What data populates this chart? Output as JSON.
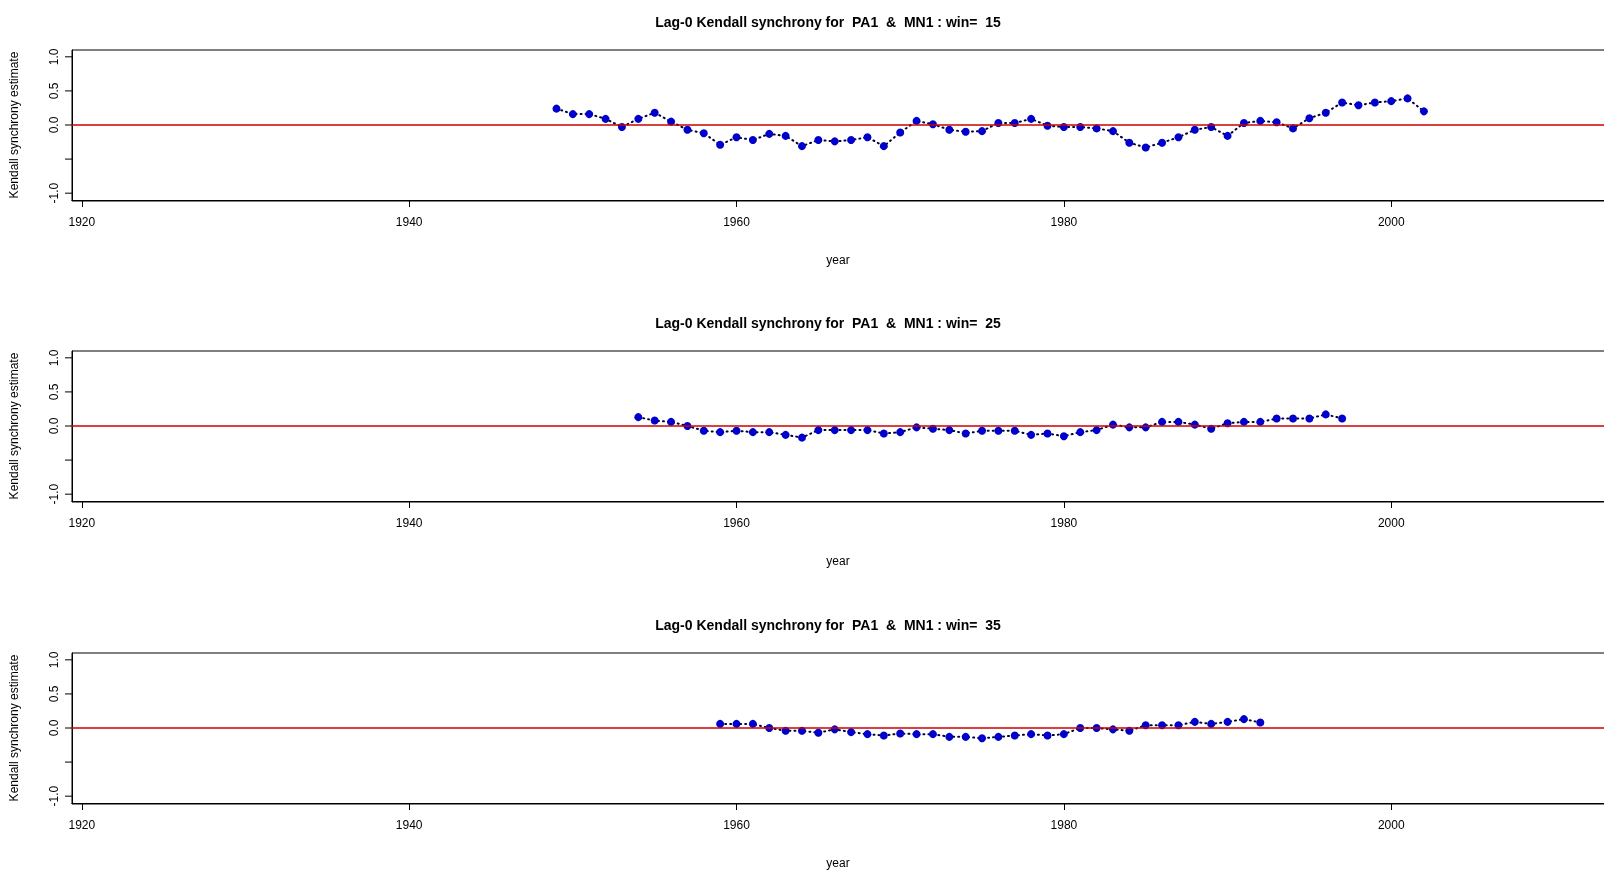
{
  "chart_data": [
    {
      "type": "line",
      "title": "Lag-0 Kendall synchrony for  PA1  &  MN1 : win=  15",
      "xlabel": "year",
      "ylabel": "Kendall synchrony estimate",
      "marker": "circle",
      "line_style": "dotted",
      "x": [
        1949,
        1950,
        1951,
        1952,
        1953,
        1954,
        1955,
        1956,
        1957,
        1958,
        1959,
        1960,
        1961,
        1962,
        1963,
        1964,
        1965,
        1966,
        1967,
        1968,
        1969,
        1970,
        1971,
        1972,
        1973,
        1974,
        1975,
        1976,
        1977,
        1978,
        1979,
        1980,
        1981,
        1982,
        1983,
        1984,
        1985,
        1986,
        1987,
        1988,
        1989,
        1990,
        1991,
        1992,
        1993,
        1994,
        1995,
        1996,
        1997,
        1998,
        1999,
        2000,
        2001,
        2002
      ],
      "series": [
        {
          "color": "#0000cc",
          "values": [
            0.24,
            0.16,
            0.16,
            0.09,
            -0.03,
            0.09,
            0.18,
            0.05,
            -0.07,
            -0.12,
            -0.29,
            -0.18,
            -0.22,
            -0.13,
            -0.16,
            -0.31,
            -0.22,
            -0.24,
            -0.22,
            -0.18,
            -0.31,
            -0.11,
            0.06,
            0.01,
            -0.07,
            -0.1,
            -0.09,
            0.03,
            0.03,
            0.09,
            -0.01,
            -0.03,
            -0.03,
            -0.05,
            -0.09,
            -0.26,
            -0.33,
            -0.26,
            -0.18,
            -0.07,
            -0.03,
            -0.16,
            0.03,
            0.06,
            0.04,
            -0.05,
            0.1,
            0.18,
            0.33,
            0.29,
            0.33,
            0.35,
            0.39,
            0.2
          ]
        }
      ],
      "xlim": [
        1919.4,
        2013
      ],
      "xticks": [
        1920,
        1940,
        1960,
        1980,
        2000
      ],
      "ylim": [
        -1.1,
        1.1
      ],
      "yticks": [
        {
          "value": -1,
          "label": "-1.0"
        },
        {
          "value": -0.5,
          "label": null
        },
        {
          "value": 0,
          "label": "0.0"
        },
        {
          "value": 0.5,
          "label": "0.5"
        },
        {
          "value": 1,
          "label": "1.0"
        }
      ],
      "ref_lines": [
        {
          "axis": "y",
          "value": 0,
          "color": "#cc0000"
        }
      ]
    },
    {
      "type": "line",
      "title": "Lag-0 Kendall synchrony for  PA1  &  MN1 : win=  25",
      "xlabel": "year",
      "ylabel": "Kendall synchrony estimate",
      "marker": "circle",
      "line_style": "dotted",
      "x": [
        1954,
        1955,
        1956,
        1957,
        1958,
        1959,
        1960,
        1961,
        1962,
        1963,
        1964,
        1965,
        1966,
        1967,
        1968,
        1969,
        1970,
        1971,
        1972,
        1973,
        1974,
        1975,
        1976,
        1977,
        1978,
        1979,
        1980,
        1981,
        1982,
        1983,
        1984,
        1985,
        1986,
        1987,
        1988,
        1989,
        1990,
        1991,
        1992,
        1993,
        1994,
        1995,
        1996,
        1997
      ],
      "series": [
        {
          "color": "#0000cc",
          "values": [
            0.13,
            0.08,
            0.06,
            0.0,
            -0.07,
            -0.09,
            -0.07,
            -0.09,
            -0.09,
            -0.13,
            -0.17,
            -0.06,
            -0.06,
            -0.06,
            -0.06,
            -0.11,
            -0.09,
            -0.02,
            -0.04,
            -0.06,
            -0.11,
            -0.07,
            -0.07,
            -0.07,
            -0.13,
            -0.11,
            -0.15,
            -0.09,
            -0.06,
            0.02,
            -0.02,
            -0.02,
            0.06,
            0.06,
            0.02,
            -0.04,
            0.04,
            0.06,
            0.06,
            0.11,
            0.11,
            0.11,
            0.17,
            0.11
          ]
        }
      ],
      "xlim": [
        1919.4,
        2013
      ],
      "xticks": [
        1920,
        1940,
        1960,
        1980,
        2000
      ],
      "ylim": [
        -1.1,
        1.1
      ],
      "yticks": [
        {
          "value": -1,
          "label": "-1.0"
        },
        {
          "value": -0.5,
          "label": null
        },
        {
          "value": 0,
          "label": "0.0"
        },
        {
          "value": 0.5,
          "label": "0.5"
        },
        {
          "value": 1,
          "label": "1.0"
        }
      ],
      "ref_lines": [
        {
          "axis": "y",
          "value": 0,
          "color": "#cc0000"
        }
      ]
    },
    {
      "type": "line",
      "title": "Lag-0 Kendall synchrony for  PA1  &  MN1 : win=  35",
      "xlabel": "year",
      "ylabel": "Kendall synchrony estimate",
      "marker": "circle",
      "line_style": "dotted",
      "x": [
        1959,
        1960,
        1961,
        1962,
        1963,
        1964,
        1965,
        1966,
        1967,
        1968,
        1969,
        1970,
        1971,
        1972,
        1973,
        1974,
        1975,
        1976,
        1977,
        1978,
        1979,
        1980,
        1981,
        1982,
        1983,
        1984,
        1985,
        1986,
        1987,
        1988,
        1989,
        1990,
        1991,
        1992
      ],
      "series": [
        {
          "color": "#0000cc",
          "values": [
            0.06,
            0.06,
            0.06,
            0.0,
            -0.04,
            -0.04,
            -0.07,
            -0.02,
            -0.06,
            -0.09,
            -0.11,
            -0.08,
            -0.09,
            -0.09,
            -0.13,
            -0.13,
            -0.15,
            -0.13,
            -0.11,
            -0.09,
            -0.11,
            -0.09,
            0.0,
            0.0,
            -0.02,
            -0.04,
            0.04,
            0.04,
            0.04,
            0.09,
            0.06,
            0.09,
            0.13,
            0.08
          ]
        }
      ],
      "xlim": [
        1919.4,
        2013
      ],
      "xticks": [
        1920,
        1940,
        1960,
        1980,
        2000
      ],
      "ylim": [
        -1.1,
        1.1
      ],
      "yticks": [
        {
          "value": -1,
          "label": "-1.0"
        },
        {
          "value": -0.5,
          "label": null
        },
        {
          "value": 0,
          "label": "0.0"
        },
        {
          "value": 0.5,
          "label": "0.5"
        },
        {
          "value": 1,
          "label": "1.0"
        }
      ],
      "ref_lines": [
        {
          "axis": "y",
          "value": 0,
          "color": "#cc0000"
        }
      ]
    }
  ]
}
